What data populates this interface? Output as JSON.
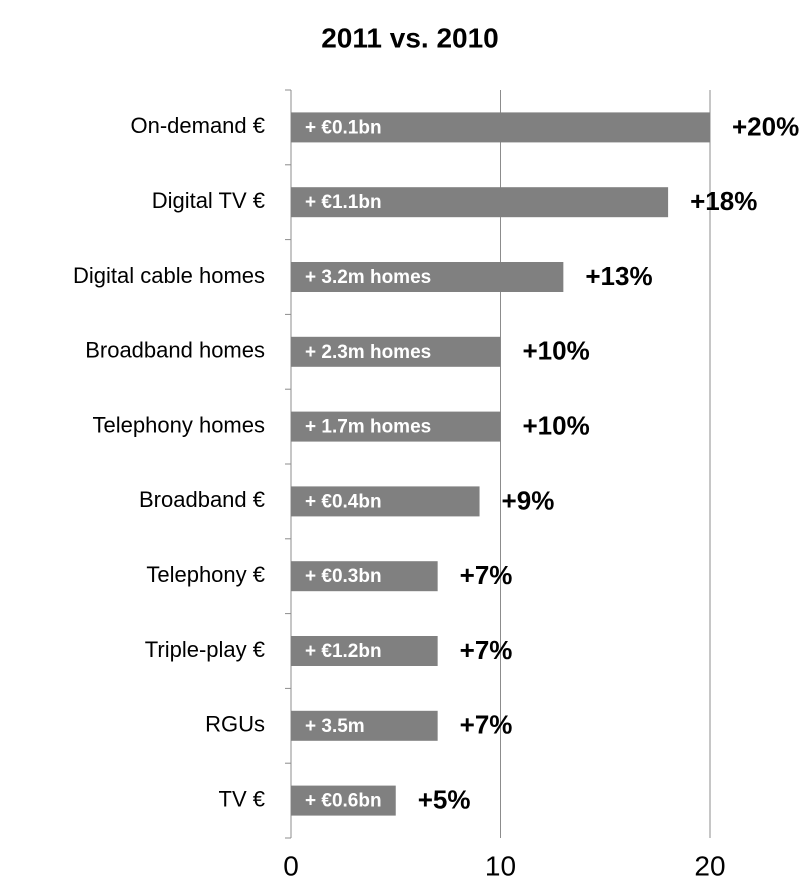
{
  "chart_data": {
    "type": "bar",
    "orientation": "horizontal",
    "title": "2011 vs. 2010",
    "categories": [
      "On-demand €",
      "Digital TV €",
      "Digital cable homes",
      "Broadband homes",
      "Telephony homes",
      "Broadband €",
      "Telephony €",
      "Triple-play €",
      "RGUs",
      "TV €"
    ],
    "values": [
      20,
      18,
      13,
      10,
      10,
      9,
      7,
      7,
      7,
      5
    ],
    "value_labels": [
      "+20%",
      "+18%",
      "+13%",
      "+10%",
      "+10%",
      "+9%",
      "+7%",
      "+7%",
      "+7%",
      "+5%"
    ],
    "bar_labels": [
      "+ €0.1bn",
      "+ €1.1bn",
      "+ 3.2m homes",
      "+ 2.3m homes",
      "+ 1.7m homes",
      "+ €0.4bn",
      "+ €0.3bn",
      "+ €1.2bn",
      "+ 3.5m",
      "+ €0.6bn"
    ],
    "color": "#808080",
    "xlim": [
      0,
      20
    ],
    "xticks": [
      0,
      10,
      20
    ],
    "grid": true
  }
}
